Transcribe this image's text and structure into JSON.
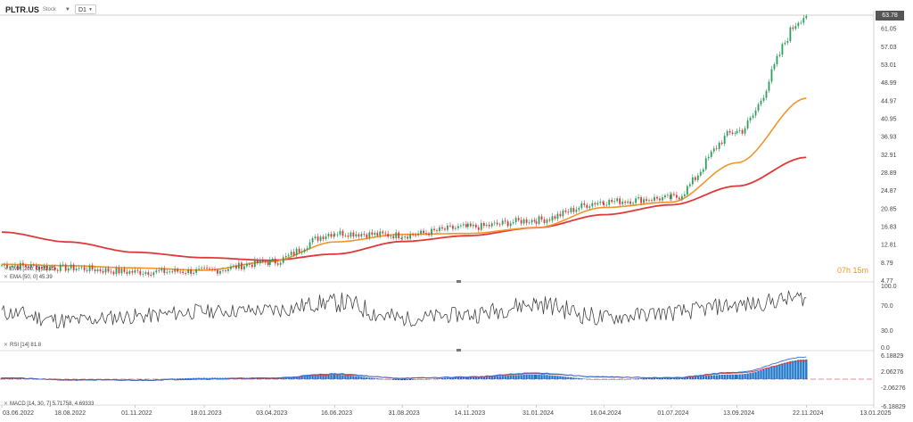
{
  "header": {
    "symbol": "PLTR.US",
    "exchange": "Stock",
    "timeframe": "D1"
  },
  "countdown": "07h 15m",
  "last_price_badge": "63.78",
  "colors": {
    "ema200": "#e0393a",
    "ema50": "#f0962a",
    "rsi": "#444444",
    "macd_line": "#2d6fd6",
    "signal_line": "#e03a3a",
    "hist_pos": "#1f77c9",
    "hist_neg": "#c0242b",
    "candle_up": "#2e9e5e",
    "candle_down": "#d23c3c"
  },
  "legends": {
    "ema200": "EMA [200, 0] 32.23",
    "ema50": "EMA [50, 0] 45.39",
    "rsi": "RSI [14] 81.8",
    "macd": "MACD [14, 30, 7] 5.71758, 4.69333"
  },
  "chart_data": [
    {
      "type": "line",
      "panel": "price",
      "y_ticks": [
        "63.78",
        "61.05",
        "57.03",
        "53.01",
        "48.99",
        "44.97",
        "40.95",
        "36.93",
        "32.91",
        "28.89",
        "24.87",
        "20.85",
        "16.83",
        "12.81",
        "8.79",
        "4.77"
      ],
      "ylim": [
        4.77,
        63.78
      ],
      "x_ticks": [
        "03.06.2022",
        "18.08.2022",
        "01.11.2022",
        "18.01.2023",
        "03.04.2023",
        "16.06.2023",
        "31.08.2023",
        "14.11.2023",
        "31.01.2024",
        "16.04.2024",
        "01.07.2024",
        "13.09.2024",
        "22.11.2024",
        "13.01.2025"
      ],
      "x": [
        0,
        75,
        150,
        228,
        302,
        375,
        451,
        525,
        602,
        678,
        754,
        828,
        906,
        982
      ],
      "series": [
        {
          "name": "EMA [200, 0] 32.23",
          "values": [
            15.5,
            13.3,
            11.0,
            9.8,
            9.2,
            10.6,
            13.4,
            14.7,
            16.5,
            19.4,
            21.6,
            25.8,
            32.2,
            null
          ]
        },
        {
          "name": "EMA [50, 0] 45.39",
          "values": [
            8.3,
            8.0,
            7.5,
            7.0,
            8.9,
            13.3,
            15.0,
            15.2,
            16.5,
            21.0,
            22.2,
            31.0,
            45.4,
            null
          ]
        },
        {
          "values": [
            8.1,
            7.5,
            6.6,
            6.8,
            8.8,
            15.3,
            14.8,
            16.6,
            18.2,
            22.3,
            23.1,
            38.0,
            63.8,
            null
          ]
        }
      ]
    },
    {
      "type": "line",
      "panel": "rsi",
      "y_ticks": [
        "100.0",
        "70.0",
        "30.0",
        "0.0"
      ],
      "ylim": [
        0,
        100
      ],
      "x": [
        0,
        75,
        150,
        228,
        302,
        375,
        451,
        525,
        602,
        678,
        754,
        828,
        906
      ],
      "values": [
        58,
        45,
        52,
        60,
        62,
        75,
        48,
        55,
        72,
        50,
        58,
        70,
        81.8
      ]
    },
    {
      "type": "line",
      "panel": "macd",
      "y_ticks": [
        "6.18829",
        "2.06276",
        "-2.06276",
        "-6.18829"
      ],
      "ylim": [
        -6.18829,
        6.18829
      ],
      "x": [
        0,
        75,
        150,
        228,
        302,
        375,
        451,
        525,
        602,
        678,
        754,
        828,
        906
      ],
      "series": [
        {
          "name": "MACD",
          "values": [
            0.4,
            -0.2,
            -0.3,
            0.1,
            0.3,
            1.4,
            0.2,
            0.6,
            1.6,
            0.5,
            0.4,
            1.8,
            5.71758
          ]
        },
        {
          "name": "Signal",
          "values": [
            0.3,
            -0.1,
            -0.3,
            0.0,
            0.2,
            1.2,
            0.3,
            0.5,
            1.4,
            0.6,
            0.3,
            1.6,
            4.69333
          ]
        }
      ]
    }
  ]
}
